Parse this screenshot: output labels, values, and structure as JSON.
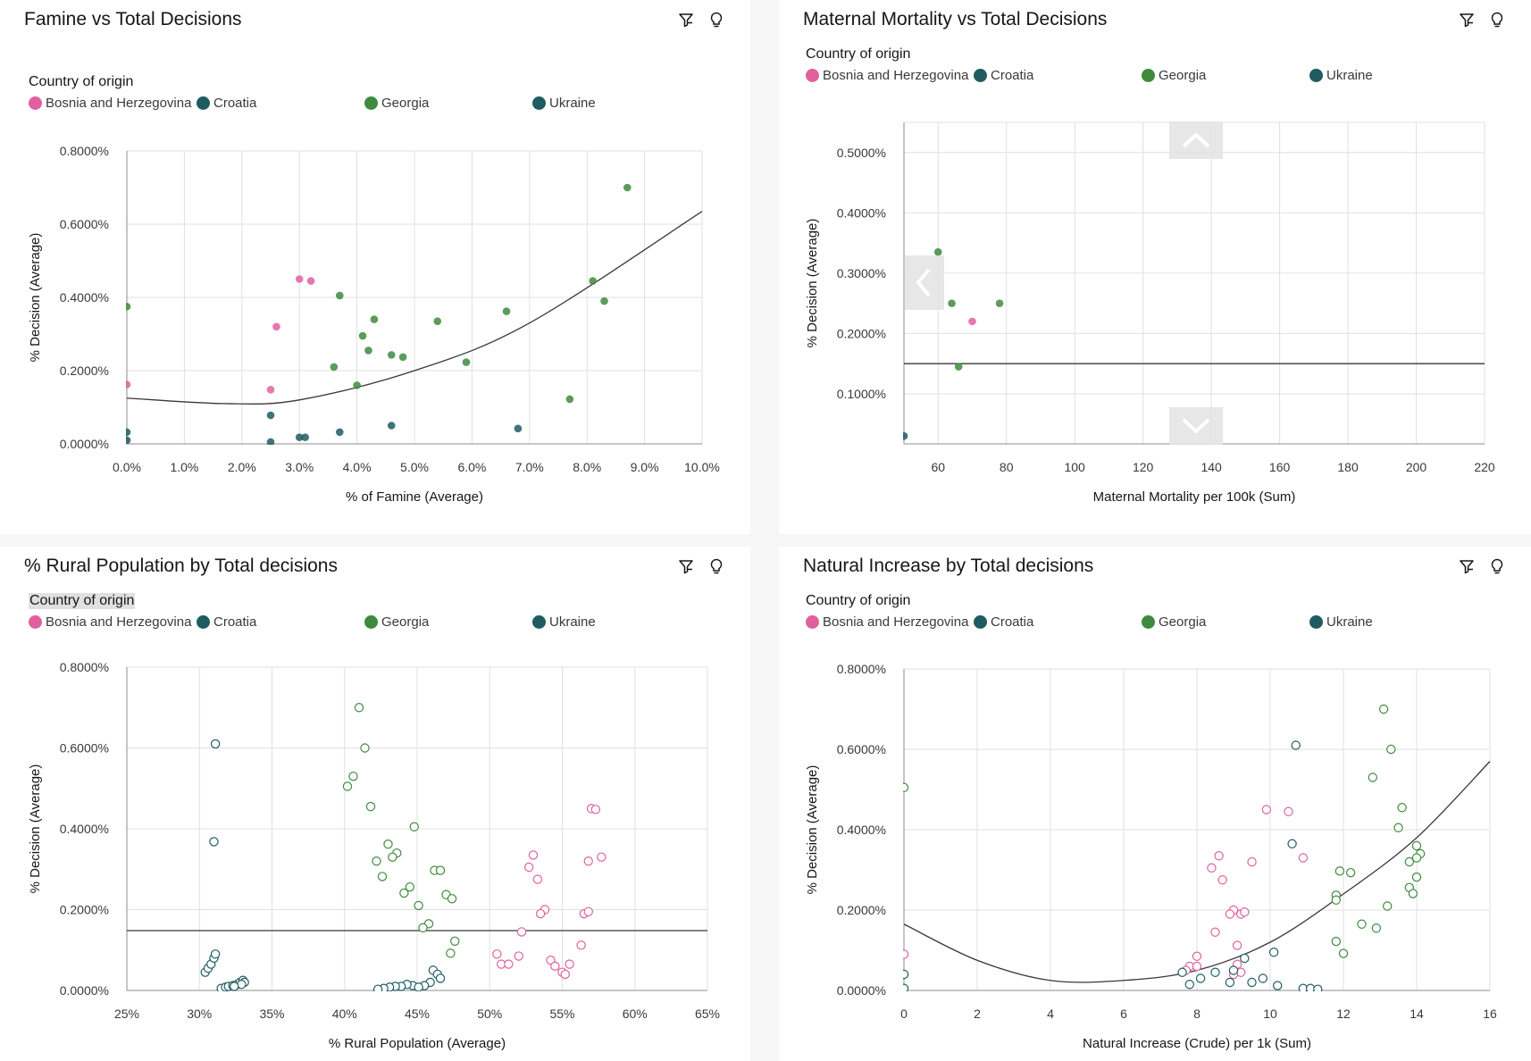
{
  "colors": {
    "bosnia": "#e0609e",
    "croatia": "#1f5c61",
    "georgia": "#3e8b3e",
    "ukraine": "#1f5c61",
    "grid": "#e0e0e0",
    "axis": "#8d8d8d",
    "trend": "#393939"
  },
  "icons": [
    "filter-icon",
    "lightbulb-icon"
  ],
  "legend": {
    "title": "Country of origin",
    "items": [
      "Bosnia and Herzegovina",
      "Croatia",
      "Georgia",
      "Ukraine"
    ]
  },
  "chart_data": [
    {
      "type": "scatter",
      "title": "Famine vs Total Decisions",
      "xlabel": "% of Famine (Average)",
      "ylabel": "% Decision (Average)",
      "xlim": [
        0,
        10
      ],
      "ylim": [
        0,
        0.8
      ],
      "x_ticks": [
        "0.0%",
        "1.0%",
        "2.0%",
        "3.0%",
        "4.0%",
        "5.0%",
        "6.0%",
        "7.0%",
        "8.0%",
        "9.0%",
        "10.0%"
      ],
      "y_ticks": [
        "0.0000%",
        "0.2000%",
        "0.4000%",
        "0.6000%",
        "0.8000%"
      ],
      "grid": true,
      "legend_placement": "top",
      "marker": "filled",
      "trendline": {
        "type": "quadratic",
        "points": [
          [
            0,
            0.125
          ],
          [
            1.7,
            0.11
          ],
          [
            3,
            0.12
          ],
          [
            5,
            0.2
          ],
          [
            7,
            0.33
          ],
          [
            10,
            0.635
          ]
        ]
      },
      "series": [
        {
          "name": "Bosnia and Herzegovina",
          "color": "bosnia",
          "points": [
            [
              3.0,
              0.45
            ],
            [
              3.2,
              0.445
            ],
            [
              2.6,
              0.32
            ],
            [
              2.5,
              0.148
            ],
            [
              0.0,
              0.162
            ]
          ]
        },
        {
          "name": "Croatia",
          "color": "croatia",
          "points": [
            [
              2.5,
              0.078
            ],
            [
              3.7,
              0.032
            ],
            [
              4.6,
              0.05
            ],
            [
              0.0,
              0.032
            ],
            [
              0.0,
              0.01
            ],
            [
              3.0,
              0.018
            ],
            [
              3.1,
              0.018
            ],
            [
              2.5,
              0.005
            ]
          ]
        },
        {
          "name": "Georgia",
          "color": "georgia",
          "points": [
            [
              8.7,
              0.7
            ],
            [
              8.1,
              0.445
            ],
            [
              8.3,
              0.39
            ],
            [
              3.7,
              0.405
            ],
            [
              0.0,
              0.375
            ],
            [
              4.3,
              0.34
            ],
            [
              5.4,
              0.335
            ],
            [
              6.6,
              0.362
            ],
            [
              4.1,
              0.295
            ],
            [
              4.2,
              0.255
            ],
            [
              4.6,
              0.243
            ],
            [
              4.8,
              0.237
            ],
            [
              3.6,
              0.21
            ],
            [
              5.9,
              0.223
            ],
            [
              4.0,
              0.16
            ],
            [
              7.7,
              0.122
            ]
          ]
        },
        {
          "name": "Ukraine",
          "color": "ukraine",
          "points": [
            [
              6.8,
              0.042
            ]
          ]
        }
      ]
    },
    {
      "type": "scatter",
      "title": "Maternal Mortality vs Total Decisions",
      "xlabel": "Maternal Mortality per 100k (Sum)",
      "ylabel": "% Decision (Average)",
      "xlim": [
        50,
        220
      ],
      "ylim": [
        0.017,
        0.55
      ],
      "x_ticks": [
        "60",
        "80",
        "100",
        "120",
        "140",
        "160",
        "180",
        "200",
        "220"
      ],
      "x_tick_values": [
        60,
        80,
        100,
        120,
        140,
        160,
        180,
        200,
        220
      ],
      "y_ticks": [
        "0.1000%",
        "0.2000%",
        "0.3000%",
        "0.4000%",
        "0.5000%"
      ],
      "y_tick_values": [
        0.1,
        0.2,
        0.3,
        0.4,
        0.5
      ],
      "grid": true,
      "legend_placement": "top",
      "marker": "filled",
      "trendline": {
        "type": "linear",
        "points": [
          [
            50,
            0.15
          ],
          [
            220,
            0.15
          ]
        ]
      },
      "series": [
        {
          "name": "Bosnia and Herzegovina",
          "color": "bosnia",
          "points": [
            [
              70,
              0.22
            ]
          ]
        },
        {
          "name": "Croatia",
          "color": "croatia",
          "points": [
            [
              50,
              0.03
            ]
          ]
        },
        {
          "name": "Georgia",
          "color": "georgia",
          "points": [
            [
              60,
              0.335
            ],
            [
              64,
              0.25
            ],
            [
              78,
              0.25
            ],
            [
              66,
              0.145
            ]
          ]
        },
        {
          "name": "Ukraine",
          "color": "ukraine",
          "points": []
        }
      ]
    },
    {
      "type": "scatter",
      "title": "% Rural Population by Total decisions",
      "xlabel": "% Rural Population (Average)",
      "ylabel": "% Decision (Average)",
      "xlim": [
        25,
        65
      ],
      "ylim": [
        0,
        0.8
      ],
      "x_ticks": [
        "25%",
        "30%",
        "35%",
        "40%",
        "45%",
        "50%",
        "55%",
        "60%",
        "65%"
      ],
      "y_ticks": [
        "0.0000%",
        "0.2000%",
        "0.4000%",
        "0.6000%",
        "0.8000%"
      ],
      "grid": true,
      "legend_placement": "top",
      "marker": "hollow",
      "trendline": {
        "type": "linear",
        "points": [
          [
            25,
            0.148
          ],
          [
            65,
            0.148
          ]
        ]
      },
      "series": [
        {
          "name": "Bosnia and Herzegovina",
          "color": "bosnia",
          "points": [
            [
              57.0,
              0.45
            ],
            [
              57.3,
              0.448
            ],
            [
              53.0,
              0.335
            ],
            [
              52.7,
              0.305
            ],
            [
              53.3,
              0.275
            ],
            [
              56.8,
              0.32
            ],
            [
              57.7,
              0.33
            ],
            [
              53.8,
              0.2
            ],
            [
              53.5,
              0.19
            ],
            [
              56.5,
              0.19
            ],
            [
              56.8,
              0.195
            ],
            [
              52.2,
              0.145
            ],
            [
              50.5,
              0.09
            ],
            [
              52.0,
              0.085
            ],
            [
              56.3,
              0.112
            ],
            [
              54.2,
              0.075
            ],
            [
              54.5,
              0.06
            ],
            [
              55.5,
              0.065
            ],
            [
              50.8,
              0.065
            ],
            [
              51.3,
              0.065
            ],
            [
              55.0,
              0.045
            ],
            [
              55.2,
              0.04
            ]
          ]
        },
        {
          "name": "Croatia",
          "color": "croatia",
          "points": [
            [
              31.1,
              0.61
            ],
            [
              31.0,
              0.368
            ],
            [
              30.4,
              0.045
            ],
            [
              30.6,
              0.055
            ],
            [
              30.8,
              0.065
            ],
            [
              31.0,
              0.08
            ],
            [
              31.1,
              0.09
            ],
            [
              31.5,
              0.005
            ],
            [
              31.8,
              0.008
            ],
            [
              32.0,
              0.01
            ],
            [
              32.3,
              0.012
            ],
            [
              32.6,
              0.015
            ],
            [
              32.8,
              0.02
            ],
            [
              33.0,
              0.025
            ],
            [
              33.1,
              0.02
            ],
            [
              32.9,
              0.015
            ],
            [
              32.4,
              0.01
            ]
          ]
        },
        {
          "name": "Georgia",
          "color": "georgia",
          "points": [
            [
              41.0,
              0.7
            ],
            [
              41.4,
              0.6
            ],
            [
              40.6,
              0.53
            ],
            [
              40.2,
              0.505
            ],
            [
              41.8,
              0.455
            ],
            [
              44.8,
              0.405
            ],
            [
              43.0,
              0.362
            ],
            [
              43.6,
              0.34
            ],
            [
              43.3,
              0.33
            ],
            [
              42.2,
              0.32
            ],
            [
              42.6,
              0.282
            ],
            [
              46.2,
              0.297
            ],
            [
              46.6,
              0.297
            ],
            [
              44.5,
              0.256
            ],
            [
              44.1,
              0.241
            ],
            [
              47.0,
              0.237
            ],
            [
              47.4,
              0.227
            ],
            [
              45.1,
              0.21
            ],
            [
              45.8,
              0.165
            ],
            [
              45.4,
              0.155
            ],
            [
              47.6,
              0.122
            ],
            [
              47.3,
              0.092
            ]
          ]
        },
        {
          "name": "Ukraine",
          "color": "ukraine",
          "points": [
            [
              46.1,
              0.05
            ],
            [
              46.4,
              0.04
            ],
            [
              46.6,
              0.03
            ],
            [
              45.9,
              0.02
            ],
            [
              45.5,
              0.012
            ],
            [
              44.7,
              0.012
            ],
            [
              44.3,
              0.015
            ],
            [
              43.9,
              0.01
            ],
            [
              43.5,
              0.01
            ],
            [
              43.1,
              0.008
            ],
            [
              42.7,
              0.005
            ],
            [
              42.3,
              0.003
            ],
            [
              45.1,
              0.008
            ]
          ]
        }
      ]
    },
    {
      "type": "scatter",
      "title": "Natural Increase by Total decisions",
      "xlabel": "Natural Increase (Crude) per 1k (Sum)",
      "ylabel": "% Decision (Average)",
      "xlim": [
        0,
        16
      ],
      "ylim": [
        0,
        0.8
      ],
      "x_ticks": [
        "0",
        "2",
        "4",
        "6",
        "8",
        "10",
        "12",
        "14",
        "16"
      ],
      "y_ticks": [
        "0.0000%",
        "0.2000%",
        "0.4000%",
        "0.6000%",
        "0.8000%"
      ],
      "grid": true,
      "legend_placement": "top",
      "marker": "hollow",
      "trendline": {
        "type": "quadratic",
        "points": [
          [
            0,
            0.165
          ],
          [
            2,
            0.075
          ],
          [
            4,
            0.025
          ],
          [
            6,
            0.025
          ],
          [
            8,
            0.05
          ],
          [
            10,
            0.12
          ],
          [
            12,
            0.24
          ],
          [
            14,
            0.38
          ],
          [
            16,
            0.57
          ]
        ]
      },
      "series": [
        {
          "name": "Bosnia and Herzegovina",
          "color": "bosnia",
          "points": [
            [
              9.9,
              0.45
            ],
            [
              10.5,
              0.445
            ],
            [
              8.6,
              0.335
            ],
            [
              8.4,
              0.305
            ],
            [
              8.7,
              0.275
            ],
            [
              9.5,
              0.32
            ],
            [
              10.9,
              0.33
            ],
            [
              9.0,
              0.2
            ],
            [
              8.9,
              0.19
            ],
            [
              9.2,
              0.19
            ],
            [
              9.3,
              0.195
            ],
            [
              8.5,
              0.145
            ],
            [
              9.1,
              0.112
            ],
            [
              8.0,
              0.085
            ],
            [
              7.8,
              0.06
            ],
            [
              8.0,
              0.06
            ],
            [
              9.1,
              0.065
            ],
            [
              9.2,
              0.045
            ],
            [
              9.0,
              0.04
            ],
            [
              0.0,
              0.09
            ],
            [
              7.7,
              0.05
            ]
          ]
        },
        {
          "name": "Croatia",
          "color": "croatia",
          "points": [
            [
              10.6,
              0.365
            ],
            [
              10.1,
              0.095
            ],
            [
              9.3,
              0.08
            ],
            [
              9.0,
              0.05
            ],
            [
              8.5,
              0.045
            ],
            [
              8.1,
              0.03
            ],
            [
              7.6,
              0.045
            ],
            [
              7.8,
              0.015
            ],
            [
              8.9,
              0.02
            ],
            [
              9.5,
              0.02
            ],
            [
              9.8,
              0.03
            ],
            [
              10.2,
              0.012
            ],
            [
              10.9,
              0.005
            ],
            [
              11.1,
              0.005
            ],
            [
              11.3,
              0.003
            ],
            [
              0.0,
              0.04
            ],
            [
              0.0,
              0.005
            ]
          ]
        },
        {
          "name": "Georgia",
          "color": "georgia",
          "points": [
            [
              13.1,
              0.7
            ],
            [
              13.3,
              0.6
            ],
            [
              12.8,
              0.53
            ],
            [
              13.6,
              0.455
            ],
            [
              0.0,
              0.505
            ],
            [
              13.5,
              0.405
            ],
            [
              14.0,
              0.36
            ],
            [
              14.1,
              0.34
            ],
            [
              14.0,
              0.33
            ],
            [
              13.8,
              0.32
            ],
            [
              11.9,
              0.297
            ],
            [
              12.2,
              0.293
            ],
            [
              14.0,
              0.282
            ],
            [
              13.8,
              0.256
            ],
            [
              13.9,
              0.241
            ],
            [
              11.8,
              0.237
            ],
            [
              11.8,
              0.225
            ],
            [
              13.2,
              0.21
            ],
            [
              12.5,
              0.165
            ],
            [
              12.9,
              0.155
            ],
            [
              11.8,
              0.122
            ],
            [
              12.0,
              0.092
            ]
          ]
        },
        {
          "name": "Ukraine",
          "color": "ukraine",
          "points": [
            [
              10.7,
              0.61
            ]
          ]
        }
      ]
    }
  ]
}
